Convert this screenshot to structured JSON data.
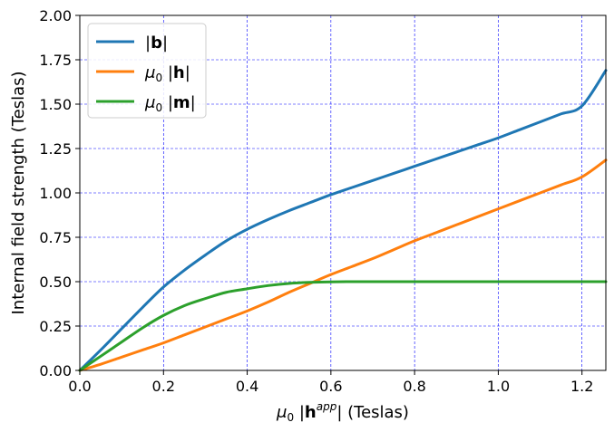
{
  "chart_data": {
    "type": "line",
    "title": "",
    "xlabel": "μ₀ |h^app|  (Teslas)",
    "ylabel": "Internal field strength (Teslas)",
    "xlim": [
      0.0,
      1.257
    ],
    "ylim": [
      0.0,
      2.0
    ],
    "xticks": [
      0.0,
      0.2,
      0.4,
      0.6,
      0.8,
      1.0,
      1.2
    ],
    "xtick_labels": [
      "0.0",
      "0.2",
      "0.4",
      "0.6",
      "0.8",
      "1.0",
      "1.2"
    ],
    "yticks": [
      0.0,
      0.25,
      0.5,
      0.75,
      1.0,
      1.25,
      1.5,
      1.75,
      2.0
    ],
    "ytick_labels": [
      "0.00",
      "0.25",
      "0.50",
      "0.75",
      "1.00",
      "1.25",
      "1.50",
      "1.75",
      "2.00"
    ],
    "grid": true,
    "legend_position": "top-left",
    "x": [
      0.0,
      0.05,
      0.1,
      0.15,
      0.2,
      0.25,
      0.3,
      0.35,
      0.4,
      0.45,
      0.5,
      0.55,
      0.6,
      0.65,
      0.7,
      0.75,
      0.8,
      0.85,
      0.9,
      0.95,
      1.0,
      1.05,
      1.1,
      1.15,
      1.2,
      1.257
    ],
    "series": [
      {
        "name": "|b|",
        "color": "#1f77b4",
        "values": [
          0.0,
          0.115,
          0.235,
          0.355,
          0.47,
          0.565,
          0.65,
          0.73,
          0.795,
          0.85,
          0.9,
          0.945,
          0.99,
          1.03,
          1.07,
          1.11,
          1.15,
          1.19,
          1.23,
          1.27,
          1.31,
          1.355,
          1.4,
          1.445,
          1.49,
          1.69
        ]
      },
      {
        "name": "μ₀ |h|",
        "color": "#ff7f0e",
        "values": [
          0.0,
          0.035,
          0.075,
          0.115,
          0.155,
          0.2,
          0.245,
          0.29,
          0.335,
          0.385,
          0.44,
          0.49,
          0.54,
          0.585,
          0.63,
          0.68,
          0.73,
          0.775,
          0.82,
          0.865,
          0.91,
          0.955,
          1.0,
          1.045,
          1.09,
          1.185
        ]
      },
      {
        "name": "μ₀ |m|",
        "color": "#2ca02c",
        "values": [
          0.0,
          0.08,
          0.16,
          0.24,
          0.31,
          0.365,
          0.405,
          0.44,
          0.46,
          0.478,
          0.49,
          0.496,
          0.499,
          0.5,
          0.5,
          0.5,
          0.5,
          0.5,
          0.5,
          0.5,
          0.5,
          0.5,
          0.5,
          0.5,
          0.5,
          0.5
        ]
      }
    ]
  }
}
